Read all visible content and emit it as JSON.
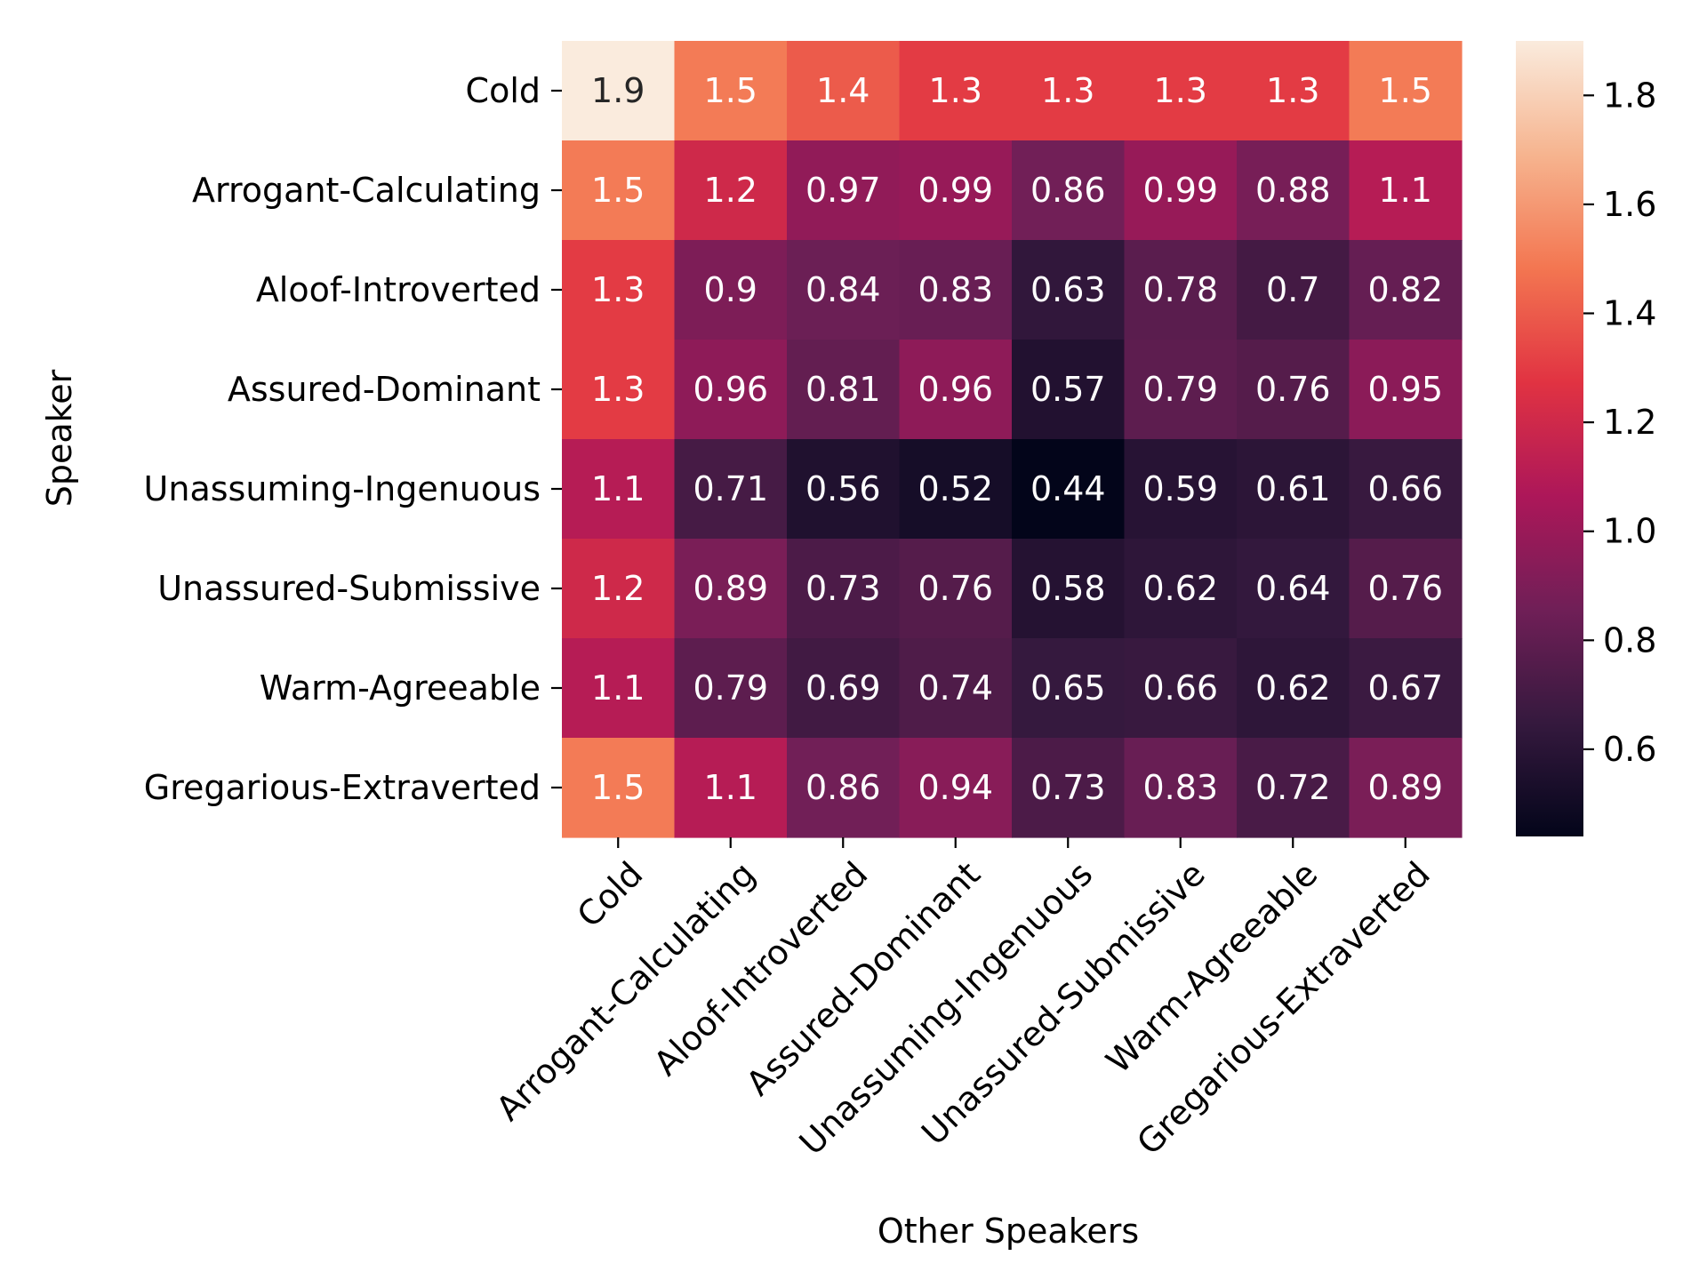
{
  "chart_data": {
    "type": "heatmap",
    "title": "",
    "xlabel": "Other Speakers",
    "ylabel": "Speaker",
    "rows": [
      "Cold",
      "Arrogant-Calculating",
      "Aloof-Introverted",
      "Assured-Dominant",
      "Unassuming-Ingenuous",
      "Unassured-Submissive",
      "Warm-Agreeable",
      "Gregarious-Extraverted"
    ],
    "columns": [
      "Cold",
      "Arrogant-Calculating",
      "Aloof-Introverted",
      "Assured-Dominant",
      "Unassuming-Ingenuous",
      "Unassured-Submissive",
      "Warm-Agreeable",
      "Gregarious-Extraverted"
    ],
    "values": [
      [
        1.9,
        1.5,
        1.4,
        1.3,
        1.3,
        1.3,
        1.3,
        1.5
      ],
      [
        1.5,
        1.2,
        0.97,
        0.99,
        0.86,
        0.99,
        0.88,
        1.1
      ],
      [
        1.3,
        0.9,
        0.84,
        0.83,
        0.63,
        0.78,
        0.7,
        0.82
      ],
      [
        1.3,
        0.96,
        0.81,
        0.96,
        0.57,
        0.79,
        0.76,
        0.95
      ],
      [
        1.1,
        0.71,
        0.56,
        0.52,
        0.44,
        0.59,
        0.61,
        0.66
      ],
      [
        1.2,
        0.89,
        0.73,
        0.76,
        0.58,
        0.62,
        0.64,
        0.76
      ],
      [
        1.1,
        0.79,
        0.69,
        0.74,
        0.65,
        0.66,
        0.62,
        0.67
      ],
      [
        1.5,
        1.1,
        0.86,
        0.94,
        0.73,
        0.83,
        0.72,
        0.89
      ]
    ],
    "colorbar": {
      "min": 0.44,
      "max": 1.9,
      "ticks": [
        0.6,
        0.8,
        1.0,
        1.2,
        1.4,
        1.6,
        1.8
      ],
      "tick_labels": [
        "0.6",
        "0.8",
        "1.0",
        "1.2",
        "1.4",
        "1.6",
        "1.8"
      ]
    },
    "colormap": "rocket",
    "colormap_stops": [
      "#03051a",
      "#35193e",
      "#701f57",
      "#ad1759",
      "#e13342",
      "#f37651",
      "#f6b48f",
      "#faebdd"
    ]
  }
}
